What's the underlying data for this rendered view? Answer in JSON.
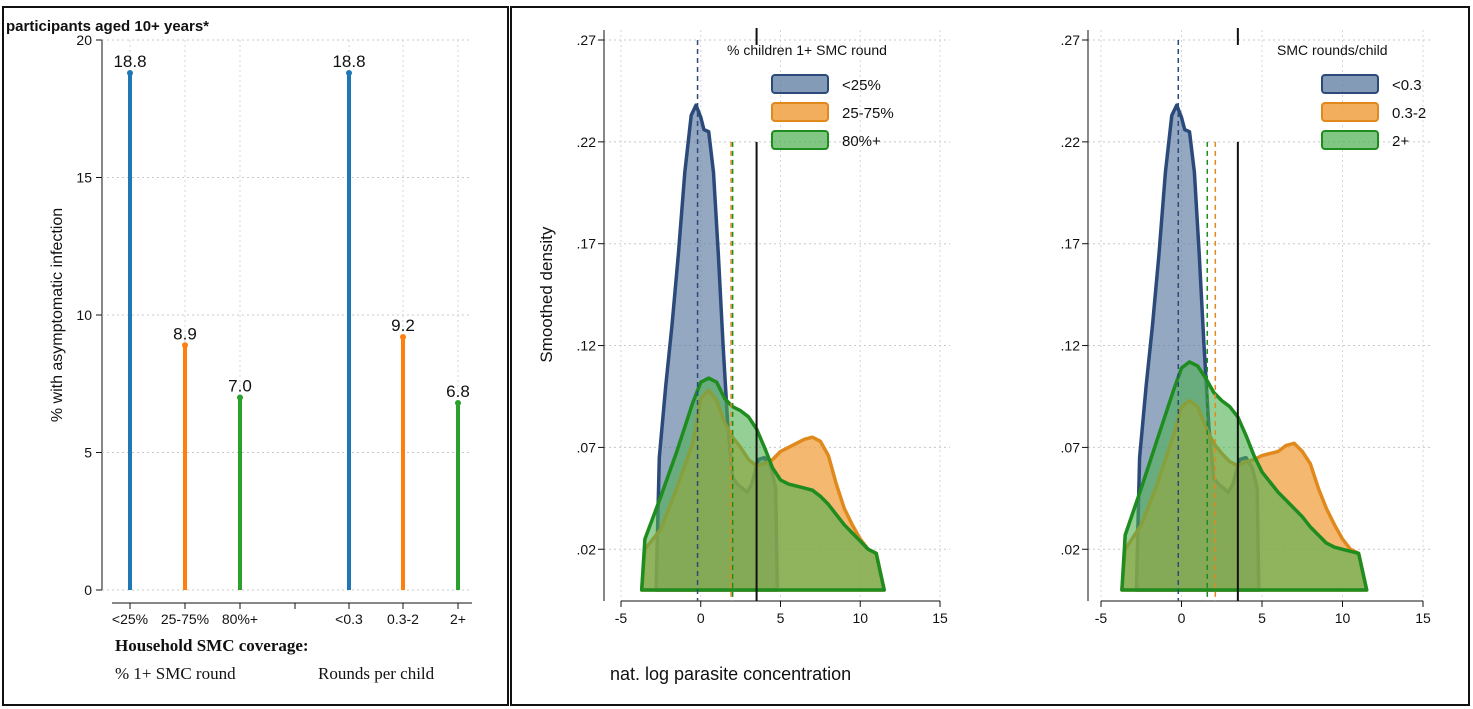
{
  "page": {
    "cut_title": "participants aged 10+ years*",
    "xaxis_bold_title": "Household SMC coverage:",
    "xaxis_group1": "% 1+ SMC round",
    "xaxis_group2": "Rounds per child",
    "density_xlabel": "nat. log parasite concentration"
  },
  "colors": {
    "blue": "#1f77b4",
    "orange": "#ff7f0e",
    "green": "#2ca02c",
    "navy": "#2b4a7a",
    "fill_blue": "#5b7aa0",
    "fill_orange": "#f0a040",
    "fill_green": "#4caf50",
    "dark_green": "#1e8c1e",
    "dark_orange": "#e08a1e"
  },
  "chart_data": [
    {
      "type": "bar",
      "subtype": "dropline",
      "ylabel": "% with asymptomatic infection",
      "xlabel": "Household SMC coverage:",
      "ylim": [
        0,
        20
      ],
      "yticks": [
        "0",
        "5",
        "10",
        "15",
        "20"
      ],
      "grid": true,
      "categories": [
        "<25%",
        "25-75%",
        "80%+",
        "<0.3",
        "0.3-2",
        "2+"
      ],
      "values": [
        18.8,
        8.9,
        7.0,
        18.8,
        9.2,
        6.8
      ],
      "labels": [
        "18.8",
        "8.9",
        "7.0",
        "18.8",
        "9.2",
        "6.8"
      ],
      "bar_colors": [
        "blue",
        "orange",
        "green",
        "blue",
        "orange",
        "green"
      ],
      "groups": [
        "% 1+ SMC round",
        "Rounds per child"
      ]
    },
    {
      "type": "area",
      "subtype": "density",
      "ylabel": "Smoothed density",
      "xlabel": "nat. log parasite concentration",
      "xlim": [
        -5,
        15
      ],
      "ylim": [
        0,
        0.27
      ],
      "xticks": [
        "-5",
        "0",
        "5",
        "10",
        "15"
      ],
      "yticks": [
        ".02",
        ".07",
        ".12",
        ".17",
        ".22",
        ".27"
      ],
      "ytick_values": [
        0.02,
        0.07,
        0.12,
        0.17,
        0.22,
        0.27
      ],
      "grid": true,
      "legend_title": "% children 1+ SMC round",
      "legend_position": "top-right",
      "overall_line_x": 3.5,
      "series": [
        {
          "name": "<25%",
          "color": "blue",
          "mean_x": -0.2,
          "x": [
            -2.8,
            -2.6,
            -2.2,
            -1.8,
            -1.4,
            -1.0,
            -0.6,
            -0.3,
            0.0,
            0.2,
            0.5,
            0.8,
            1.1,
            1.4,
            1.7,
            2.0,
            2.3,
            2.6,
            2.9,
            3.2,
            3.6,
            4.0,
            4.4,
            4.7,
            4.8
          ],
          "y": [
            0.0,
            0.065,
            0.1,
            0.13,
            0.165,
            0.205,
            0.233,
            0.238,
            0.232,
            0.226,
            0.225,
            0.205,
            0.165,
            0.12,
            0.08,
            0.055,
            0.052,
            0.05,
            0.048,
            0.052,
            0.064,
            0.065,
            0.06,
            0.05,
            0.0
          ]
        },
        {
          "name": "25-75%",
          "color": "orange",
          "mean_x": 1.9,
          "x": [
            -3.7,
            -3.5,
            -2.5,
            -1.5,
            -0.5,
            0.0,
            0.5,
            1.0,
            1.5,
            2.0,
            2.5,
            3.0,
            3.5,
            4.0,
            4.5,
            5.0,
            5.5,
            6.0,
            6.5,
            7.0,
            7.5,
            8.0,
            8.5,
            9.0,
            9.5,
            10.0,
            10.5,
            11.0,
            11.5
          ],
          "y": [
            0.0,
            0.02,
            0.03,
            0.05,
            0.072,
            0.094,
            0.098,
            0.093,
            0.082,
            0.075,
            0.07,
            0.064,
            0.061,
            0.062,
            0.064,
            0.068,
            0.07,
            0.072,
            0.074,
            0.075,
            0.073,
            0.066,
            0.052,
            0.04,
            0.032,
            0.025,
            0.02,
            0.018,
            0.0
          ]
        },
        {
          "name": "80%+",
          "color": "green",
          "mean_x": 2.0,
          "x": [
            -3.7,
            -3.5,
            -2.5,
            -1.5,
            -0.5,
            0.0,
            0.5,
            1.0,
            1.5,
            2.0,
            2.5,
            3.0,
            3.5,
            4.0,
            4.5,
            5.0,
            5.5,
            6.0,
            6.5,
            7.0,
            7.5,
            8.0,
            8.5,
            9.0,
            9.5,
            10.0,
            10.5,
            11.0,
            11.5
          ],
          "y": [
            0.0,
            0.025,
            0.046,
            0.068,
            0.092,
            0.102,
            0.104,
            0.102,
            0.094,
            0.09,
            0.088,
            0.085,
            0.079,
            0.07,
            0.06,
            0.054,
            0.052,
            0.051,
            0.05,
            0.049,
            0.046,
            0.042,
            0.037,
            0.032,
            0.028,
            0.024,
            0.02,
            0.018,
            0.0
          ]
        }
      ]
    },
    {
      "type": "area",
      "subtype": "density",
      "ylabel": "",
      "xlabel": "",
      "xlim": [
        -5,
        15
      ],
      "ylim": [
        0,
        0.27
      ],
      "xticks": [
        "-5",
        "0",
        "5",
        "10",
        "15"
      ],
      "yticks": [
        ".02",
        ".07",
        ".12",
        ".17",
        ".22",
        ".27"
      ],
      "ytick_values": [
        0.02,
        0.07,
        0.12,
        0.17,
        0.22,
        0.27
      ],
      "grid": true,
      "legend_title": "SMC rounds/child",
      "legend_position": "top-right",
      "overall_line_x": 3.5,
      "series": [
        {
          "name": "<0.3",
          "color": "blue",
          "mean_x": -0.2,
          "x": [
            -2.8,
            -2.6,
            -2.2,
            -1.8,
            -1.4,
            -1.0,
            -0.6,
            -0.3,
            0.0,
            0.2,
            0.5,
            0.8,
            1.1,
            1.4,
            1.7,
            2.0,
            2.3,
            2.6,
            2.9,
            3.2,
            3.6,
            4.0,
            4.4,
            4.7,
            4.8
          ],
          "y": [
            0.0,
            0.065,
            0.1,
            0.13,
            0.165,
            0.205,
            0.233,
            0.238,
            0.232,
            0.226,
            0.225,
            0.205,
            0.165,
            0.12,
            0.08,
            0.055,
            0.052,
            0.05,
            0.048,
            0.052,
            0.064,
            0.065,
            0.06,
            0.05,
            0.0
          ]
        },
        {
          "name": "0.3-2",
          "color": "orange",
          "mean_x": 2.1,
          "x": [
            -3.7,
            -3.5,
            -2.5,
            -1.5,
            -0.5,
            0.0,
            0.5,
            1.0,
            1.5,
            2.0,
            2.5,
            3.0,
            3.5,
            4.0,
            4.5,
            5.0,
            5.5,
            6.0,
            6.5,
            7.0,
            7.5,
            8.0,
            8.5,
            9.0,
            9.5,
            10.0,
            10.5,
            11.0,
            11.5
          ],
          "y": [
            0.0,
            0.02,
            0.032,
            0.052,
            0.076,
            0.09,
            0.093,
            0.09,
            0.08,
            0.072,
            0.067,
            0.063,
            0.061,
            0.063,
            0.064,
            0.066,
            0.067,
            0.068,
            0.071,
            0.072,
            0.068,
            0.062,
            0.05,
            0.04,
            0.032,
            0.025,
            0.02,
            0.018,
            0.0
          ]
        },
        {
          "name": "2+",
          "color": "green",
          "mean_x": 1.6,
          "x": [
            -3.7,
            -3.5,
            -2.5,
            -1.5,
            -0.5,
            0.0,
            0.5,
            1.0,
            1.5,
            2.0,
            2.5,
            3.0,
            3.5,
            4.0,
            4.5,
            5.0,
            5.5,
            6.0,
            6.5,
            7.0,
            7.5,
            8.0,
            8.5,
            9.0,
            9.5,
            10.0,
            10.5,
            11.0,
            11.5
          ],
          "y": [
            0.0,
            0.027,
            0.05,
            0.074,
            0.098,
            0.109,
            0.112,
            0.11,
            0.104,
            0.097,
            0.093,
            0.09,
            0.085,
            0.076,
            0.066,
            0.058,
            0.053,
            0.048,
            0.044,
            0.04,
            0.036,
            0.031,
            0.027,
            0.023,
            0.021,
            0.02,
            0.019,
            0.018,
            0.0
          ]
        }
      ]
    }
  ]
}
